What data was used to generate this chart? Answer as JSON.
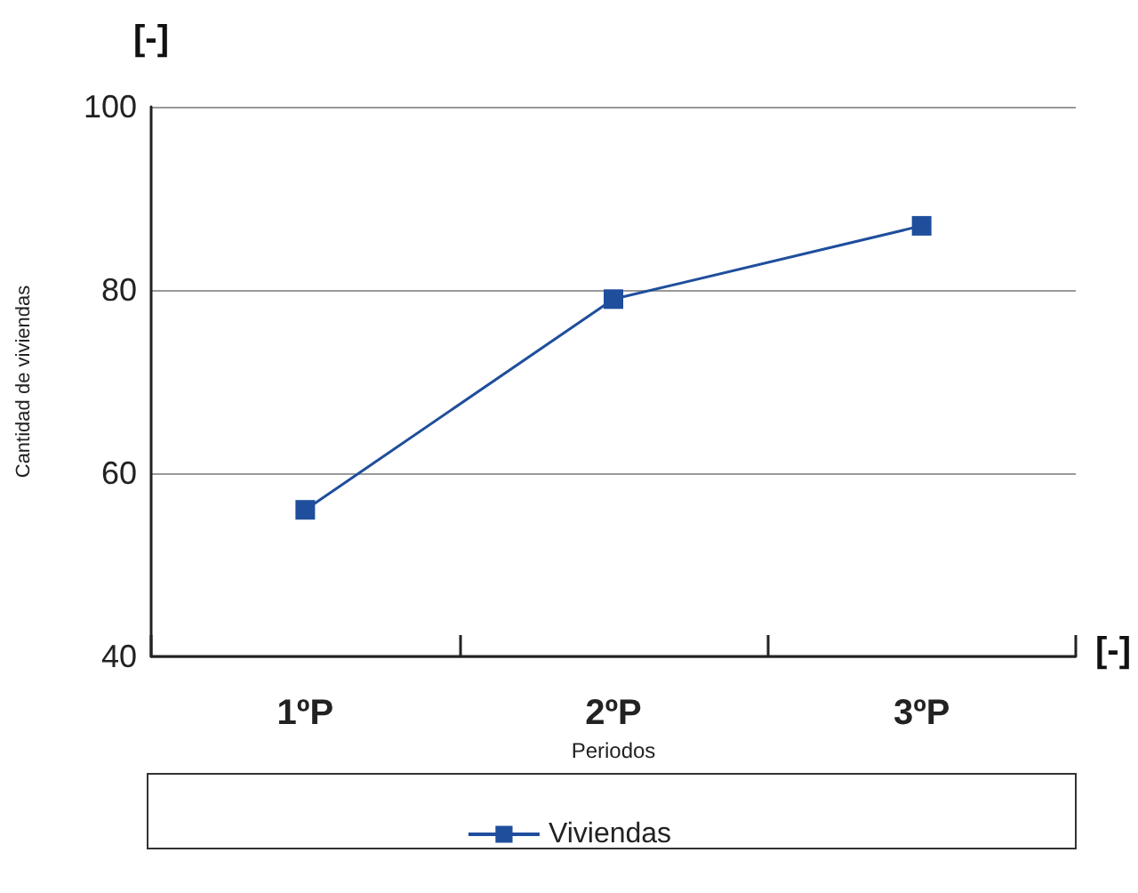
{
  "chart_data": {
    "type": "line",
    "xlabel": "Periodos",
    "ylabel": "Cantidad de viviendas",
    "annotations": [
      "[-]",
      "[-]"
    ],
    "categories": [
      "1ºP",
      "2ºP",
      "3ºP"
    ],
    "series": [
      {
        "name": "Viviendas",
        "color": "#1f4e9c",
        "values": [
          56,
          79,
          87
        ]
      }
    ],
    "ylim": [
      40,
      100
    ],
    "yticks": [
      40,
      60,
      80,
      100
    ],
    "grid": "y",
    "legend": "bottom",
    "marker": "square",
    "line_style": "solid"
  }
}
